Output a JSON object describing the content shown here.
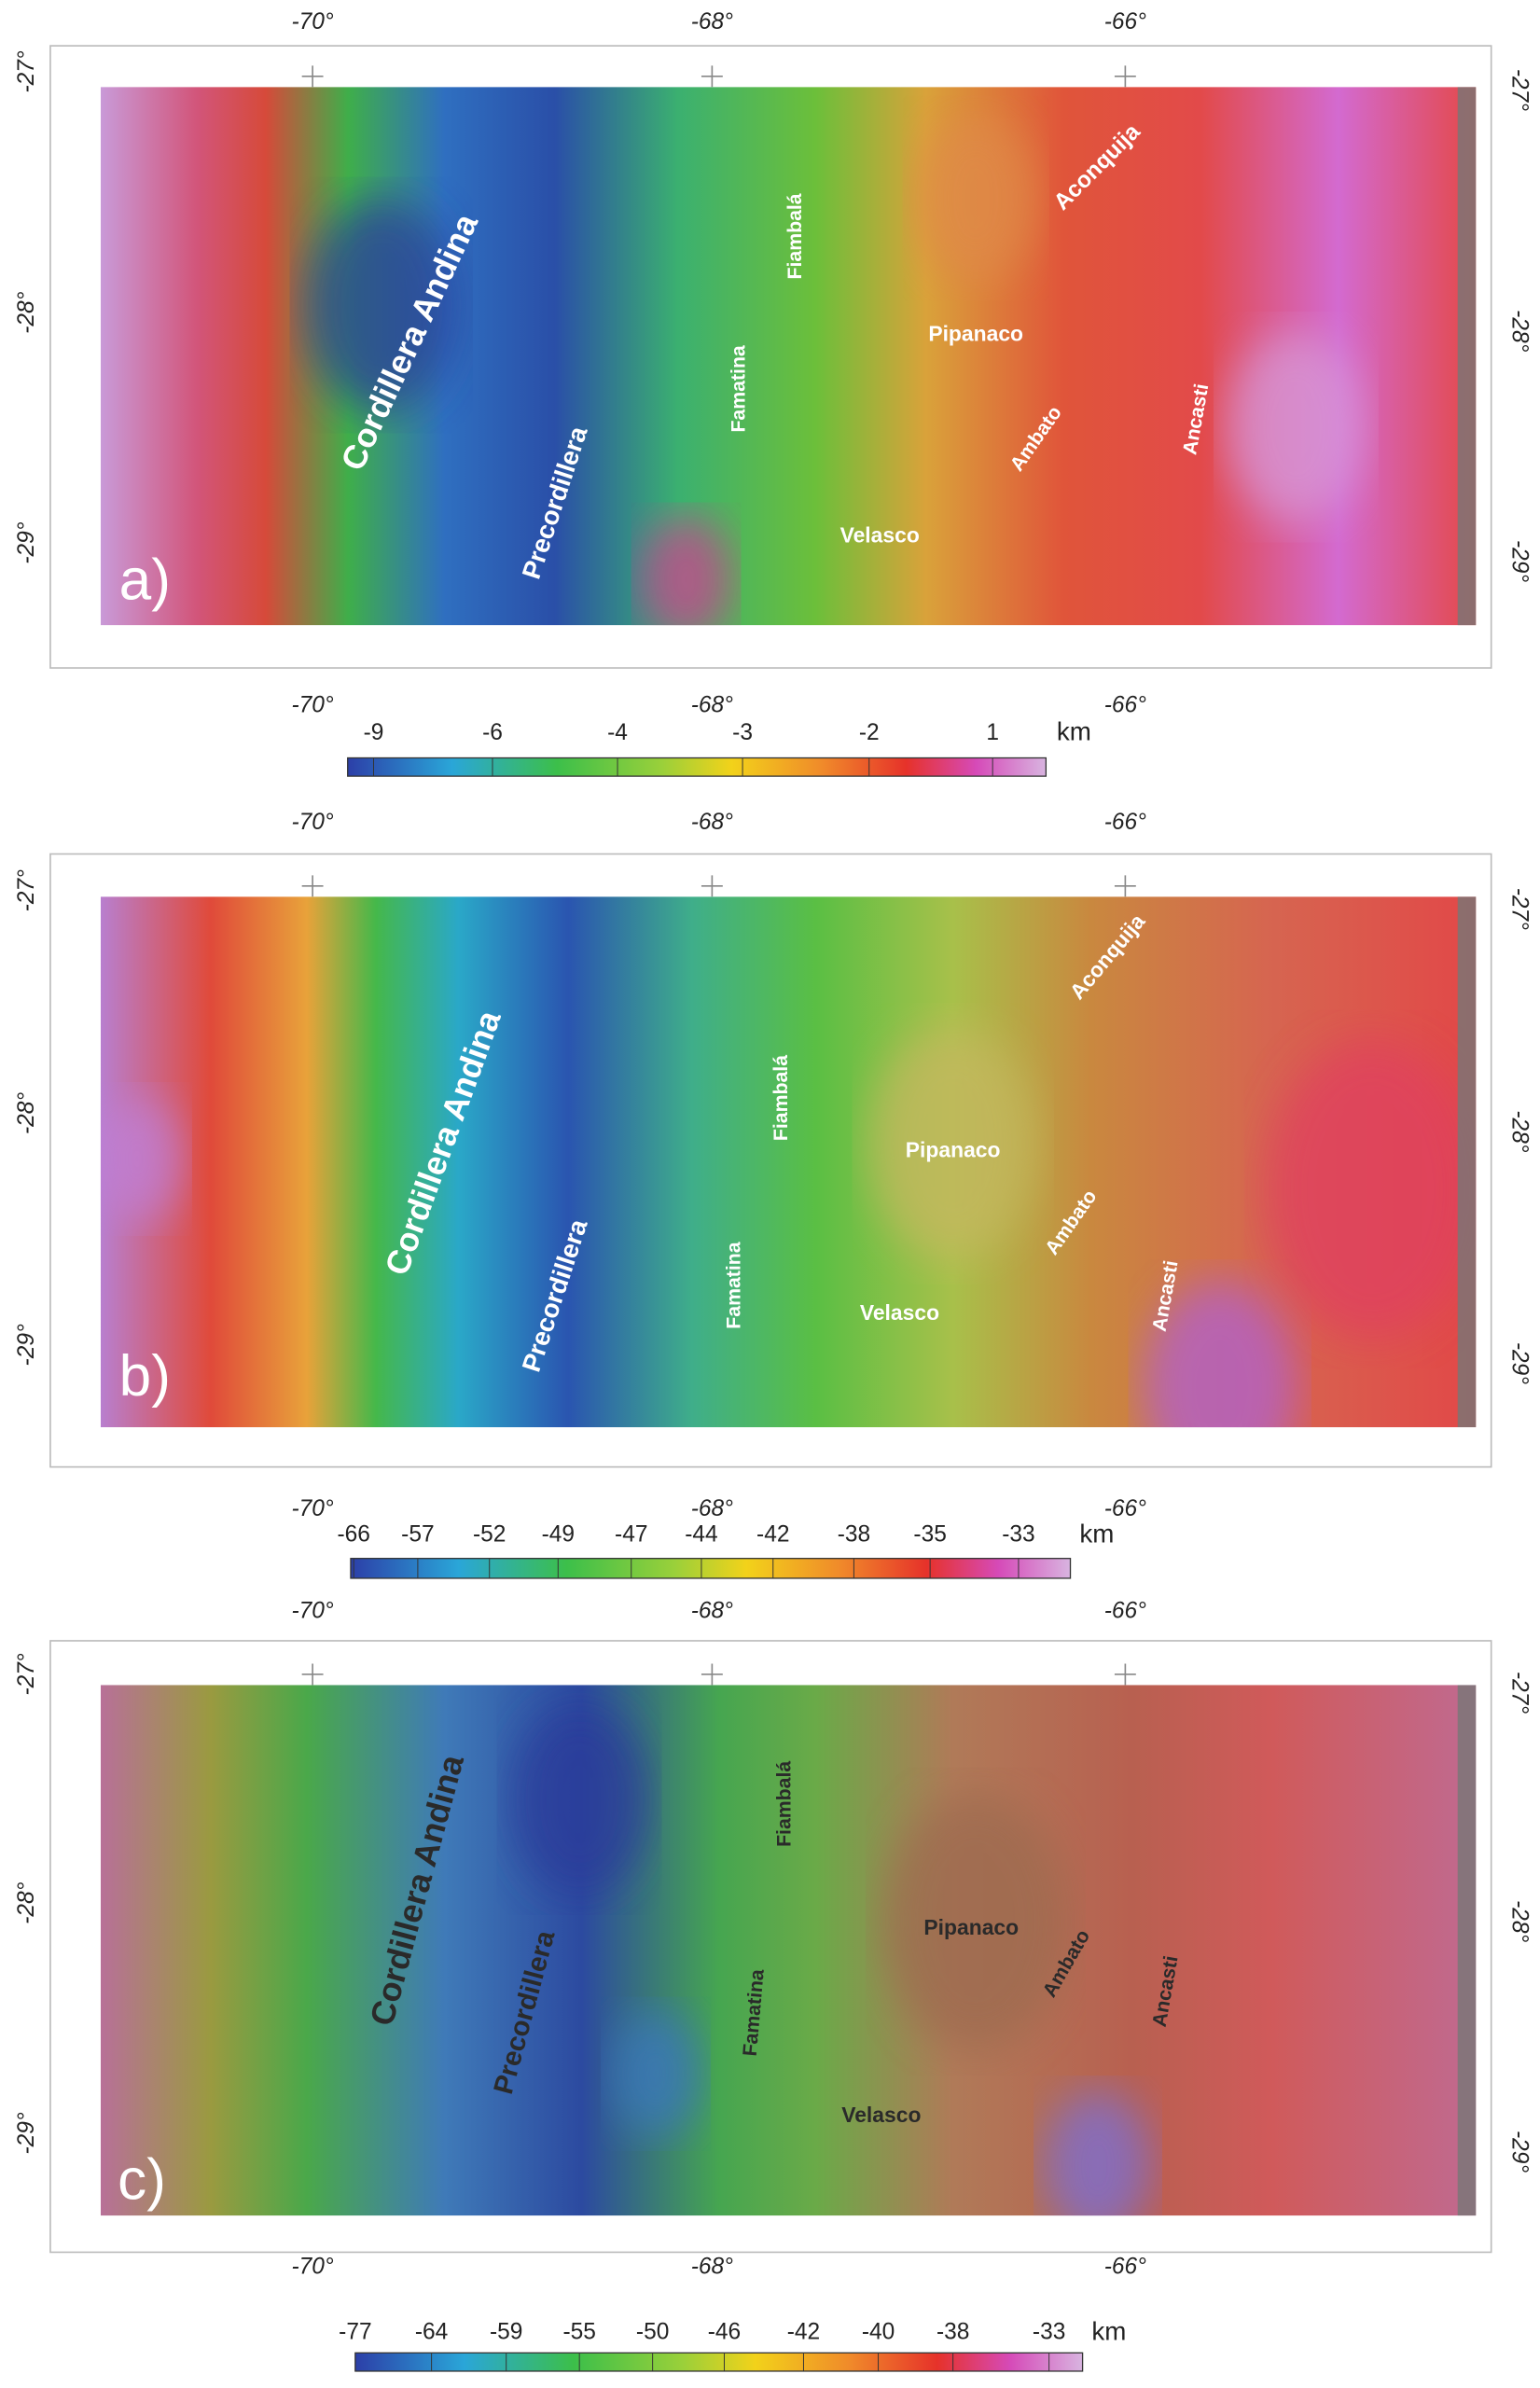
{
  "longitude_labels": [
    "-70°",
    "-68°",
    "-66°"
  ],
  "latitude_labels": [
    "-27°",
    "-28°",
    "-29°"
  ],
  "panels": [
    {
      "label": "a)",
      "places": [
        "Cordillera Andina",
        "Precordillera",
        "Famatina",
        "Fiambalá",
        "Pipanaco",
        "Ambato",
        "Ancasti",
        "Velasco",
        "Aconquija"
      ],
      "colorbar": {
        "ticks": [
          "-9",
          "-6",
          "-4",
          "-3",
          "-2",
          "1"
        ],
        "unit": "km"
      }
    },
    {
      "label": "b)",
      "places": [
        "Cordillera Andina",
        "Precordillera",
        "Famatina",
        "Fiambalá",
        "Pipanaco",
        "Ambato",
        "Ancasti",
        "Velasco",
        "Aconquija"
      ],
      "colorbar": {
        "ticks": [
          "-66",
          "-57",
          "-52",
          "-49",
          "-47",
          "-44",
          "-42",
          "-38",
          "-35",
          "-33"
        ],
        "unit": "km"
      }
    },
    {
      "label": "c)",
      "places": [
        "Cordillera Andina",
        "Precordillera",
        "Famatina",
        "Fiambalá",
        "Pipanaco",
        "Ambato",
        "Ancasti",
        "Velasco"
      ],
      "colorbar": {
        "ticks": [
          "-77",
          "-64",
          "-59",
          "-55",
          "-50",
          "-46",
          "-42",
          "-40",
          "-38",
          "-33"
        ],
        "unit": "km"
      }
    }
  ]
}
